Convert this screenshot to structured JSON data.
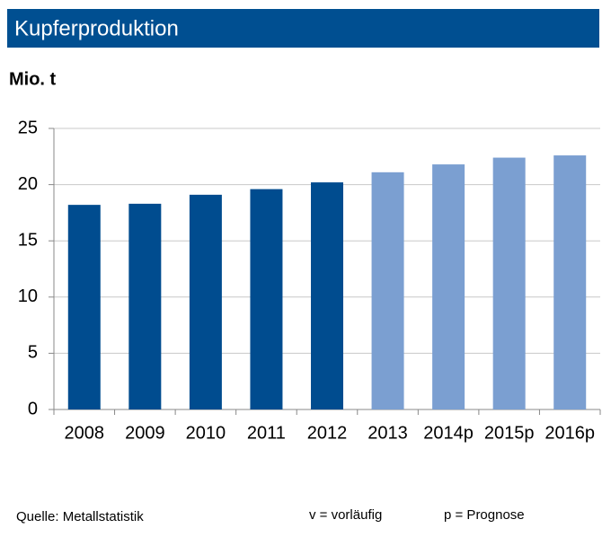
{
  "chart_data": {
    "type": "bar",
    "title": "Kupferproduktion",
    "y_label": "Mio. t",
    "categories": [
      "2008",
      "2009",
      "2010",
      "2011",
      "2012",
      "2013",
      "2014p",
      "2015p",
      "2016p"
    ],
    "values": [
      18.2,
      18.3,
      19.1,
      19.6,
      20.2,
      21.1,
      21.8,
      22.4,
      22.6
    ],
    "colors": [
      "#004c8f",
      "#004c8f",
      "#004c8f",
      "#004c8f",
      "#004c8f",
      "#7b9fd1",
      "#7b9fd1",
      "#7b9fd1",
      "#7b9fd1"
    ],
    "ylim": [
      0,
      25
    ],
    "yticks": [
      0,
      5,
      10,
      15,
      20,
      25
    ],
    "grid": true,
    "source": "Quelle: Metallstatistik",
    "notes": [
      "v = vorläufig",
      "p = Prognose"
    ]
  }
}
